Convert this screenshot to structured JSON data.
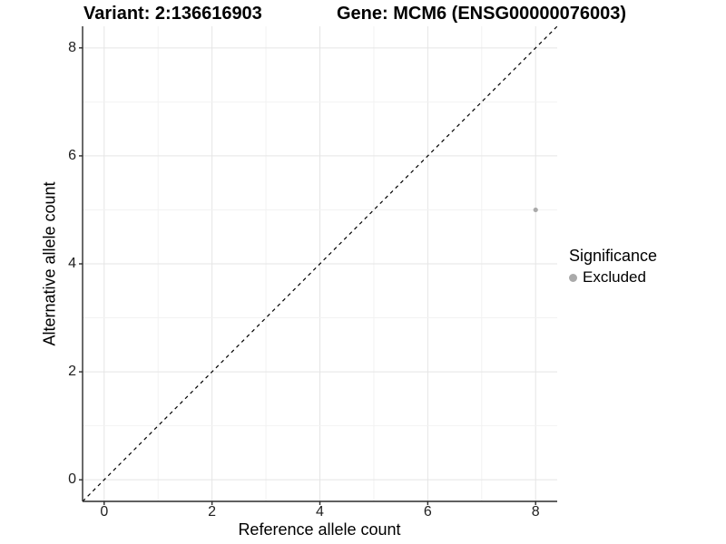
{
  "titles": {
    "variant": "Variant: 2:136616903",
    "gene": "Gene: MCM6 (ENSG00000076003)"
  },
  "axes": {
    "x_label": "Reference allele count",
    "y_label": "Alternative allele count"
  },
  "legend": {
    "title": "Significance",
    "items": [
      {
        "label": "Excluded",
        "color": "#aaaaaa"
      }
    ]
  },
  "colors": {
    "background": "#ffffff",
    "axis_line": "#2b2b2b",
    "tick_mark": "#2b2b2b",
    "tick_label": "#1f1f1f",
    "grid_major": "#e5e5e5",
    "grid_minor": "#f2f2f2",
    "reference_line": "#000000",
    "point": "#aaaaaa"
  },
  "chart_data": {
    "type": "scatter",
    "title_left": "Variant: 2:136616903",
    "title_right": "Gene: MCM6 (ENSG00000076003)",
    "xlabel": "Reference allele count",
    "ylabel": "Alternative allele count",
    "xlim": [
      -0.4,
      8.4
    ],
    "ylim": [
      -0.4,
      8.4
    ],
    "x_ticks": [
      0,
      2,
      4,
      6,
      8
    ],
    "y_ticks": [
      0,
      2,
      4,
      6,
      8
    ],
    "grid": true,
    "grid_interval": 1,
    "points": [
      {
        "x": 8,
        "y": 5,
        "series": "Excluded",
        "color": "#aaaaaa"
      }
    ],
    "reference_line": {
      "kind": "identity",
      "style": "dashed",
      "color": "#000000"
    },
    "legend": {
      "title": "Significance",
      "position": "right",
      "entries": [
        "Excluded"
      ]
    }
  }
}
